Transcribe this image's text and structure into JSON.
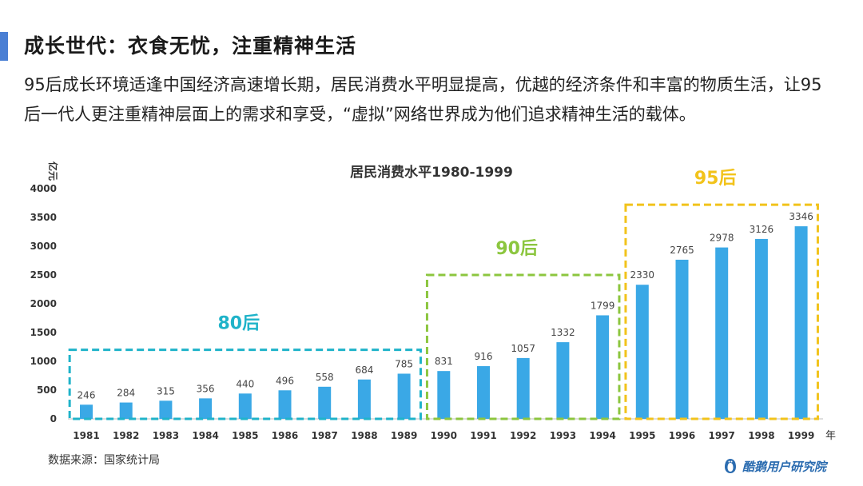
{
  "heading": "成长世代：衣食无忧，注重精神生活",
  "intro": "95后成长环境适逢中国经济高速增长期，居民消费水平明显提高，优越的经济条件和丰富的物质生活，让95后一代人更注重精神层面上的需求和享受，“虚拟”网络世界成为他们追求精神生活的载体。",
  "source": "数据来源：国家统计局",
  "brand": {
    "name": "酷鹅用户研究院",
    "icon": "penguin-logo-icon"
  },
  "chart_data": {
    "type": "bar",
    "title": "居民消费水平1980-1999",
    "ylabel": "亿元",
    "xunit": "年",
    "ylim": [
      0,
      4000
    ],
    "yticks": [
      0,
      500,
      1000,
      1500,
      2000,
      2500,
      3000,
      3500,
      4000
    ],
    "grid": false,
    "bar_color": "#3aa8e6",
    "categories": [
      "1981",
      "1982",
      "1983",
      "1984",
      "1985",
      "1986",
      "1987",
      "1988",
      "1989",
      "1990",
      "1991",
      "1992",
      "1993",
      "1994",
      "1995",
      "1996",
      "1997",
      "1998",
      "1999"
    ],
    "values": [
      246,
      284,
      315,
      356,
      440,
      496,
      558,
      684,
      785,
      831,
      916,
      1057,
      1332,
      1799,
      2330,
      2765,
      2978,
      3126,
      3346
    ],
    "groups": [
      {
        "label": "80后",
        "from": "1981",
        "to": "1989",
        "top_value": 1200,
        "color": "#1fb3c9"
      },
      {
        "label": "90后",
        "from": "1990",
        "to": "1994",
        "top_value": 2500,
        "color": "#8cc63f"
      },
      {
        "label": "95后",
        "from": "1995",
        "to": "1999",
        "top_value": 3720,
        "color": "#f2c31b"
      }
    ]
  }
}
